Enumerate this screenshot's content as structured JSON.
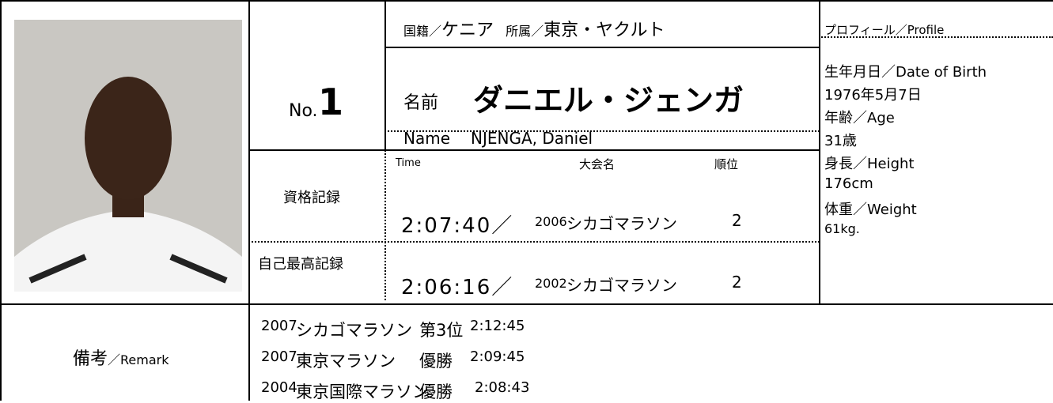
{
  "header": {
    "nationality_label": "国籍／",
    "nationality": "ケニア",
    "affiliation_label": "所属／",
    "affiliation": "東京・ヤクルト"
  },
  "number": {
    "prefix": "No.",
    "value": "1"
  },
  "name": {
    "label": "名前",
    "japanese": "ダニエル・ジェンガ",
    "roman_label": "Name",
    "roman": "NJENGA, Daniel"
  },
  "records": {
    "columns": [
      "Time",
      "大会名",
      "順位"
    ],
    "rows": [
      {
        "label": "資格記録",
        "time": "2:07:40／",
        "year": "2006",
        "race": "シカゴマラソン",
        "rank": "2"
      },
      {
        "label": "自己最高記録",
        "time": "2:06:16／",
        "year": "2002",
        "race": "シカゴマラソン",
        "rank": "2"
      }
    ]
  },
  "profile": {
    "title": "プロフィール／Profile",
    "lines": [
      "生年月日／Date of Birth",
      "1976年5月7日",
      "年齢／Age",
      "31歳",
      "身長／Height",
      "176cm",
      "体重／Weight",
      "61kg."
    ]
  },
  "remarks": {
    "label": "備考",
    "label_en": "／Remark",
    "rows": [
      [
        "2007",
        "シカゴマラソン",
        "第3位",
        "2:12:45"
      ],
      [
        "2007",
        "東京マラソン",
        "優勝",
        "2:09:45"
      ],
      [
        "2004",
        "東京国際マラソン",
        "優勝",
        "2:08:43"
      ]
    ]
  }
}
